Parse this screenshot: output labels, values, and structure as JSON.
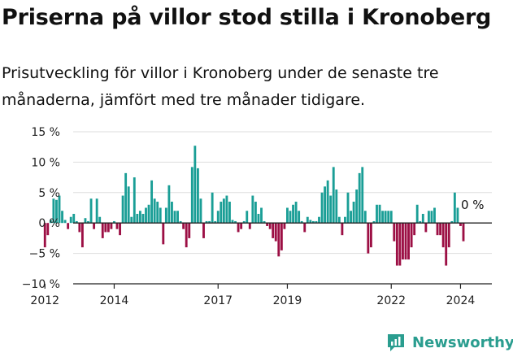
{
  "title": "Priserna på villor stod stilla i Kronoberg",
  "subtitle": "Prisutveckling för villor i Kronoberg under de senaste tre månaderna, jämfört med tre månader tidigare.",
  "brand": "Newsworthy",
  "colors": {
    "positive": "#1a9e96",
    "negative": "#9c0f44",
    "axis": "#333333",
    "grid": "#dddddd",
    "brand": "#2a9d8f"
  },
  "chart_data": {
    "type": "bar",
    "title": "",
    "xlabel": "",
    "ylabel": "",
    "ylim": [
      -10,
      15
    ],
    "yticks": [
      15,
      10,
      5,
      0,
      -5,
      -10
    ],
    "ytick_labels": [
      "15 %",
      "10 %",
      "5 %",
      "0 %",
      "−5 %",
      "−10 %"
    ],
    "xticks": [
      2012,
      2014,
      2017,
      2019,
      2022,
      2024
    ],
    "x_start": 2012,
    "bars_per_year": 12,
    "values": [
      -4,
      -2,
      0.5,
      4,
      3.8,
      4.5,
      2,
      0.5,
      -1,
      1,
      1.5,
      0.3,
      -1.5,
      -4,
      0.8,
      0.3,
      4,
      -1,
      4,
      1,
      -2.5,
      -1.5,
      -1.5,
      -1,
      0.3,
      -1,
      -2,
      4.5,
      8.2,
      6,
      1,
      7.5,
      1.5,
      2,
      1.5,
      2.5,
      3,
      7,
      4,
      3.5,
      2.5,
      -3.5,
      2.5,
      6.2,
      3.5,
      2,
      2,
      0.3,
      -1,
      -4,
      -2.5,
      9.2,
      12.7,
      9,
      4,
      -2.5,
      0.3,
      0.3,
      5,
      0.3,
      2,
      3.5,
      4,
      4.5,
      3.5,
      0.5,
      0.3,
      -1.5,
      -1,
      0.3,
      2,
      -1,
      4.5,
      3.5,
      1.5,
      2.5,
      0.3,
      -0.5,
      -1,
      -2.5,
      -3,
      -5.5,
      -4.5,
      -1,
      2.5,
      2,
      3,
      3.5,
      2,
      0.3,
      -1.5,
      1,
      0.5,
      0.3,
      0.3,
      1,
      5,
      6,
      7,
      4.5,
      9.2,
      5.5,
      1,
      -2,
      1,
      5,
      2,
      3.5,
      5.5,
      8.2,
      9.2,
      2,
      -5,
      -4,
      0.3,
      3,
      3,
      2,
      2,
      2,
      2,
      -3,
      -7,
      -7,
      -6,
      -6,
      -6,
      -4,
      -2,
      3,
      0.3,
      1.5,
      -1.5,
      2,
      2,
      2.5,
      -2,
      -2,
      -4,
      -7,
      -4,
      0.3,
      5,
      2.5,
      -0.5,
      -3
    ],
    "annotation": {
      "label": "0 %",
      "value": 0
    }
  }
}
